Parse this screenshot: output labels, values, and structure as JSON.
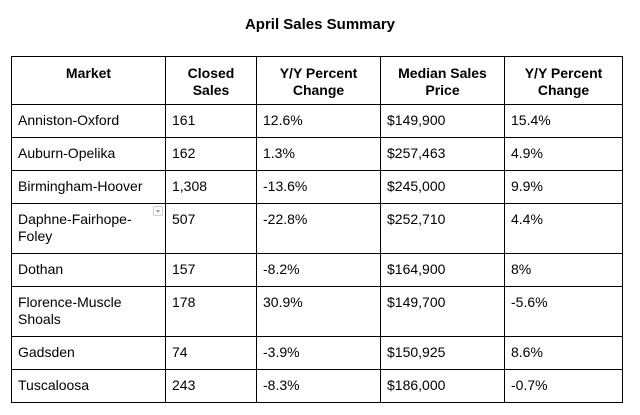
{
  "title": "April Sales Summary",
  "columns": [
    "Market",
    "Closed Sales",
    "Y/Y Percent Change",
    "Median Sales Price",
    "Y/Y Percent Change"
  ],
  "rows": [
    {
      "market": "Anniston-Oxford",
      "closed_sales": "161",
      "sales_change": "12.6%",
      "median_price": "$149,900",
      "price_change": "15.4%"
    },
    {
      "market": "Auburn-Opelika",
      "closed_sales": "162",
      "sales_change": "1.3%",
      "median_price": "$257,463",
      "price_change": "4.9%"
    },
    {
      "market": "Birmingham-Hoover",
      "closed_sales": "1,308",
      "sales_change": "-13.6%",
      "median_price": "$245,000",
      "price_change": "9.9%"
    },
    {
      "market": "Daphne-Fairhope-Foley",
      "closed_sales": "507",
      "sales_change": "-22.8%",
      "median_price": "$252,710",
      "price_change": "4.4%"
    },
    {
      "market": "Dothan",
      "closed_sales": "157",
      "sales_change": "-8.2%",
      "median_price": "$164,900",
      "price_change": "8%"
    },
    {
      "market": "Florence-Muscle Shoals",
      "closed_sales": "178",
      "sales_change": "30.9%",
      "median_price": "$149,700",
      "price_change": "-5.6%"
    },
    {
      "market": "Gadsden",
      "closed_sales": "74",
      "sales_change": "-3.9%",
      "median_price": "$150,925",
      "price_change": "8.6%"
    },
    {
      "market": "Tuscaloosa",
      "closed_sales": "243",
      "sales_change": "-8.3%",
      "median_price": "$186,000",
      "price_change": "-0.7%"
    }
  ],
  "icons": {
    "dropdown": "chevron-down-icon"
  }
}
